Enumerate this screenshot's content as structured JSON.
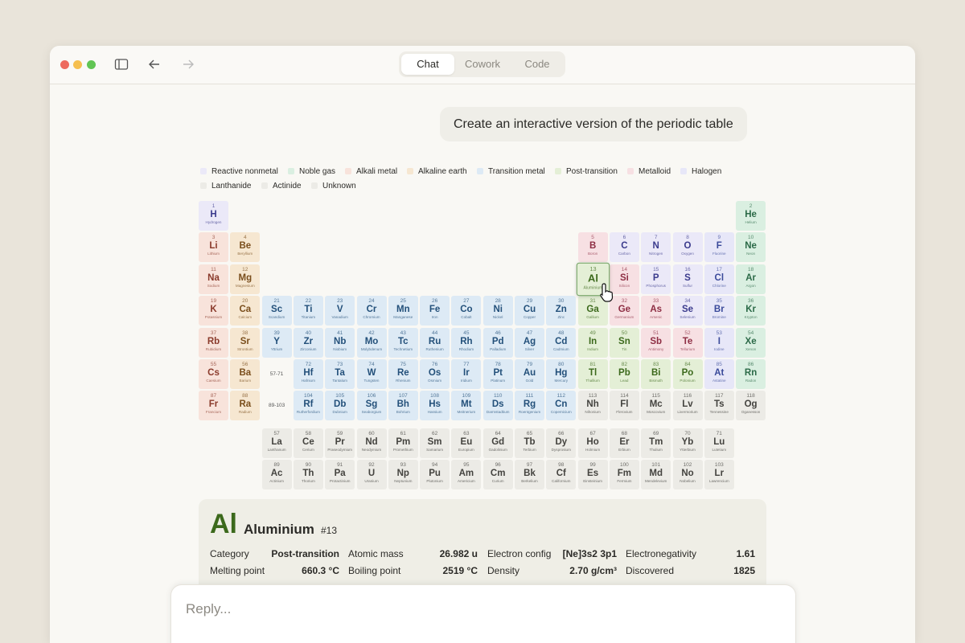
{
  "window": {
    "tabs": [
      "Chat",
      "Cowork",
      "Code"
    ]
  },
  "message": "Create an interactive version of the periodic table",
  "legend": [
    {
      "name": "Reactive nonmetal",
      "color": "#ebe9f8",
      "text_color": "#3a3a8c"
    },
    {
      "name": "Noble gas",
      "color": "#daefe1",
      "text_color": "#2c6a48"
    },
    {
      "name": "Alkali metal",
      "color": "#f8e3db",
      "text_color": "#8a3a2b"
    },
    {
      "name": "Alkaline earth",
      "color": "#f6e7d1",
      "text_color": "#7a4e1c"
    },
    {
      "name": "Transition metal",
      "color": "#ddeaf5",
      "text_color": "#23507a"
    },
    {
      "name": "Post-transition",
      "color": "#e4efd6",
      "text_color": "#3c691c"
    },
    {
      "name": "Metalloid",
      "color": "#f7e0e3",
      "text_color": "#8e2e44"
    },
    {
      "name": "Halogen",
      "color": "#e7e7f8",
      "text_color": "#3a4a9a"
    },
    {
      "name": "Lanthanide",
      "color": "#ecebe6",
      "text_color": "#44433f"
    },
    {
      "name": "Actinide",
      "color": "#ecebe6",
      "text_color": "#44433f"
    },
    {
      "name": "Unknown",
      "color": "#ecebe6",
      "text_color": "#44433f"
    }
  ],
  "elements": [
    [
      1,
      "H",
      "Hydrogen",
      0
    ],
    [
      2,
      "He",
      "Helium",
      1
    ],
    [
      3,
      "Li",
      "Lithium",
      2
    ],
    [
      4,
      "Be",
      "Beryllium",
      3
    ],
    [
      5,
      "B",
      "Boron",
      6
    ],
    [
      6,
      "C",
      "Carbon",
      0
    ],
    [
      7,
      "N",
      "Nitrogen",
      0
    ],
    [
      8,
      "O",
      "Oxygen",
      0
    ],
    [
      9,
      "F",
      "Fluorine",
      7
    ],
    [
      10,
      "Ne",
      "Neon",
      1
    ],
    [
      11,
      "Na",
      "Sodium",
      2
    ],
    [
      12,
      "Mg",
      "Magnesium",
      3
    ],
    [
      13,
      "Al",
      "Aluminium",
      5
    ],
    [
      14,
      "Si",
      "Silicon",
      6
    ],
    [
      15,
      "P",
      "Phosphorus",
      0
    ],
    [
      16,
      "S",
      "Sulfur",
      0
    ],
    [
      17,
      "Cl",
      "Chlorine",
      7
    ],
    [
      18,
      "Ar",
      "Argon",
      1
    ],
    [
      19,
      "K",
      "Potassium",
      2
    ],
    [
      20,
      "Ca",
      "Calcium",
      3
    ],
    [
      21,
      "Sc",
      "Scandium",
      4
    ],
    [
      22,
      "Ti",
      "Titanium",
      4
    ],
    [
      23,
      "V",
      "Vanadium",
      4
    ],
    [
      24,
      "Cr",
      "Chromium",
      4
    ],
    [
      25,
      "Mn",
      "Manganese",
      4
    ],
    [
      26,
      "Fe",
      "Iron",
      4
    ],
    [
      27,
      "Co",
      "Cobalt",
      4
    ],
    [
      28,
      "Ni",
      "Nickel",
      4
    ],
    [
      29,
      "Cu",
      "Copper",
      4
    ],
    [
      30,
      "Zn",
      "Zinc",
      4
    ],
    [
      31,
      "Ga",
      "Gallium",
      5
    ],
    [
      32,
      "Ge",
      "Germanium",
      6
    ],
    [
      33,
      "As",
      "Arsenic",
      6
    ],
    [
      34,
      "Se",
      "Selenium",
      0
    ],
    [
      35,
      "Br",
      "Bromine",
      7
    ],
    [
      36,
      "Kr",
      "Krypton",
      1
    ],
    [
      37,
      "Rb",
      "Rubidium",
      2
    ],
    [
      38,
      "Sr",
      "Strontium",
      3
    ],
    [
      39,
      "Y",
      "Yttrium",
      4
    ],
    [
      40,
      "Zr",
      "Zirconium",
      4
    ],
    [
      41,
      "Nb",
      "Niobium",
      4
    ],
    [
      42,
      "Mo",
      "Molybdenum",
      4
    ],
    [
      43,
      "Tc",
      "Technetium",
      4
    ],
    [
      44,
      "Ru",
      "Ruthenium",
      4
    ],
    [
      45,
      "Rh",
      "Rhodium",
      4
    ],
    [
      46,
      "Pd",
      "Palladium",
      4
    ],
    [
      47,
      "Ag",
      "Silver",
      4
    ],
    [
      48,
      "Cd",
      "Cadmium",
      4
    ],
    [
      49,
      "In",
      "Indium",
      5
    ],
    [
      50,
      "Sn",
      "Tin",
      5
    ],
    [
      51,
      "Sb",
      "Antimony",
      6
    ],
    [
      52,
      "Te",
      "Tellurium",
      6
    ],
    [
      53,
      "I",
      "Iodine",
      7
    ],
    [
      54,
      "Xe",
      "Xenon",
      1
    ],
    [
      55,
      "Cs",
      "Caesium",
      2
    ],
    [
      56,
      "Ba",
      "Barium",
      3
    ],
    [
      57,
      "La",
      "Lanthanum",
      8
    ],
    [
      58,
      "Ce",
      "Cerium",
      8
    ],
    [
      59,
      "Pr",
      "Praseodymium",
      8
    ],
    [
      60,
      "Nd",
      "Neodymium",
      8
    ],
    [
      61,
      "Pm",
      "Promethium",
      8
    ],
    [
      62,
      "Sm",
      "Samarium",
      8
    ],
    [
      63,
      "Eu",
      "Europium",
      8
    ],
    [
      64,
      "Gd",
      "Gadolinium",
      8
    ],
    [
      65,
      "Tb",
      "Terbium",
      8
    ],
    [
      66,
      "Dy",
      "Dysprosium",
      8
    ],
    [
      67,
      "Ho",
      "Holmium",
      8
    ],
    [
      68,
      "Er",
      "Erbium",
      8
    ],
    [
      69,
      "Tm",
      "Thulium",
      8
    ],
    [
      70,
      "Yb",
      "Ytterbium",
      8
    ],
    [
      71,
      "Lu",
      "Lutetium",
      8
    ],
    [
      72,
      "Hf",
      "Hafnium",
      4
    ],
    [
      73,
      "Ta",
      "Tantalum",
      4
    ],
    [
      74,
      "W",
      "Tungsten",
      4
    ],
    [
      75,
      "Re",
      "Rhenium",
      4
    ],
    [
      76,
      "Os",
      "Osmium",
      4
    ],
    [
      77,
      "Ir",
      "Iridium",
      4
    ],
    [
      78,
      "Pt",
      "Platinum",
      4
    ],
    [
      79,
      "Au",
      "Gold",
      4
    ],
    [
      80,
      "Hg",
      "Mercury",
      4
    ],
    [
      81,
      "Tl",
      "Thallium",
      5
    ],
    [
      82,
      "Pb",
      "Lead",
      5
    ],
    [
      83,
      "Bi",
      "Bismuth",
      5
    ],
    [
      84,
      "Po",
      "Polonium",
      5
    ],
    [
      85,
      "At",
      "Astatine",
      7
    ],
    [
      86,
      "Rn",
      "Radon",
      1
    ],
    [
      87,
      "Fr",
      "Francium",
      2
    ],
    [
      88,
      "Ra",
      "Radium",
      3
    ],
    [
      89,
      "Ac",
      "Actinium",
      9
    ],
    [
      90,
      "Th",
      "Thorium",
      9
    ],
    [
      91,
      "Pa",
      "Protactinium",
      9
    ],
    [
      92,
      "U",
      "Uranium",
      9
    ],
    [
      93,
      "Np",
      "Neptunium",
      9
    ],
    [
      94,
      "Pu",
      "Plutonium",
      9
    ],
    [
      95,
      "Am",
      "Americium",
      9
    ],
    [
      96,
      "Cm",
      "Curium",
      9
    ],
    [
      97,
      "Bk",
      "Berkelium",
      9
    ],
    [
      98,
      "Cf",
      "Californium",
      9
    ],
    [
      99,
      "Es",
      "Einsteinium",
      9
    ],
    [
      100,
      "Fm",
      "Fermium",
      9
    ],
    [
      101,
      "Md",
      "Mendelevium",
      9
    ],
    [
      102,
      "No",
      "Nobelium",
      9
    ],
    [
      103,
      "Lr",
      "Lawrencium",
      9
    ],
    [
      104,
      "Rf",
      "Rutherfordium",
      4
    ],
    [
      105,
      "Db",
      "Dubnium",
      4
    ],
    [
      106,
      "Sg",
      "Seaborgium",
      4
    ],
    [
      107,
      "Bh",
      "Bohrium",
      4
    ],
    [
      108,
      "Hs",
      "Hassium",
      4
    ],
    [
      109,
      "Mt",
      "Meitnerium",
      4
    ],
    [
      110,
      "Ds",
      "Darmstadtium",
      4
    ],
    [
      111,
      "Rg",
      "Roentgenium",
      4
    ],
    [
      112,
      "Cn",
      "Copernicium",
      4
    ],
    [
      113,
      "Nh",
      "Nihonium",
      10
    ],
    [
      114,
      "Fl",
      "Flerovium",
      10
    ],
    [
      115,
      "Mc",
      "Moscovium",
      10
    ],
    [
      116,
      "Lv",
      "Livermorium",
      10
    ],
    [
      117,
      "Ts",
      "Tennessine",
      10
    ],
    [
      118,
      "Og",
      "Oganesson",
      10
    ]
  ],
  "placeholders": [
    "57-71",
    "89-103"
  ],
  "detail": {
    "symbol": "Al",
    "name": "Aluminium",
    "number": "#13",
    "fields": [
      [
        "Category",
        "Post-transition"
      ],
      [
        "Atomic mass",
        "26.982 u"
      ],
      [
        "Electron config",
        "[Ne]3s2 3p1"
      ],
      [
        "Electronegativity",
        "1.61"
      ],
      [
        "Melting point",
        "660.3 °C"
      ],
      [
        "Boiling point",
        "2519 °C"
      ],
      [
        "Density",
        "2.70 g/cm³"
      ],
      [
        "Discovered",
        "1825"
      ]
    ]
  },
  "reply_placeholder": "Reply..."
}
